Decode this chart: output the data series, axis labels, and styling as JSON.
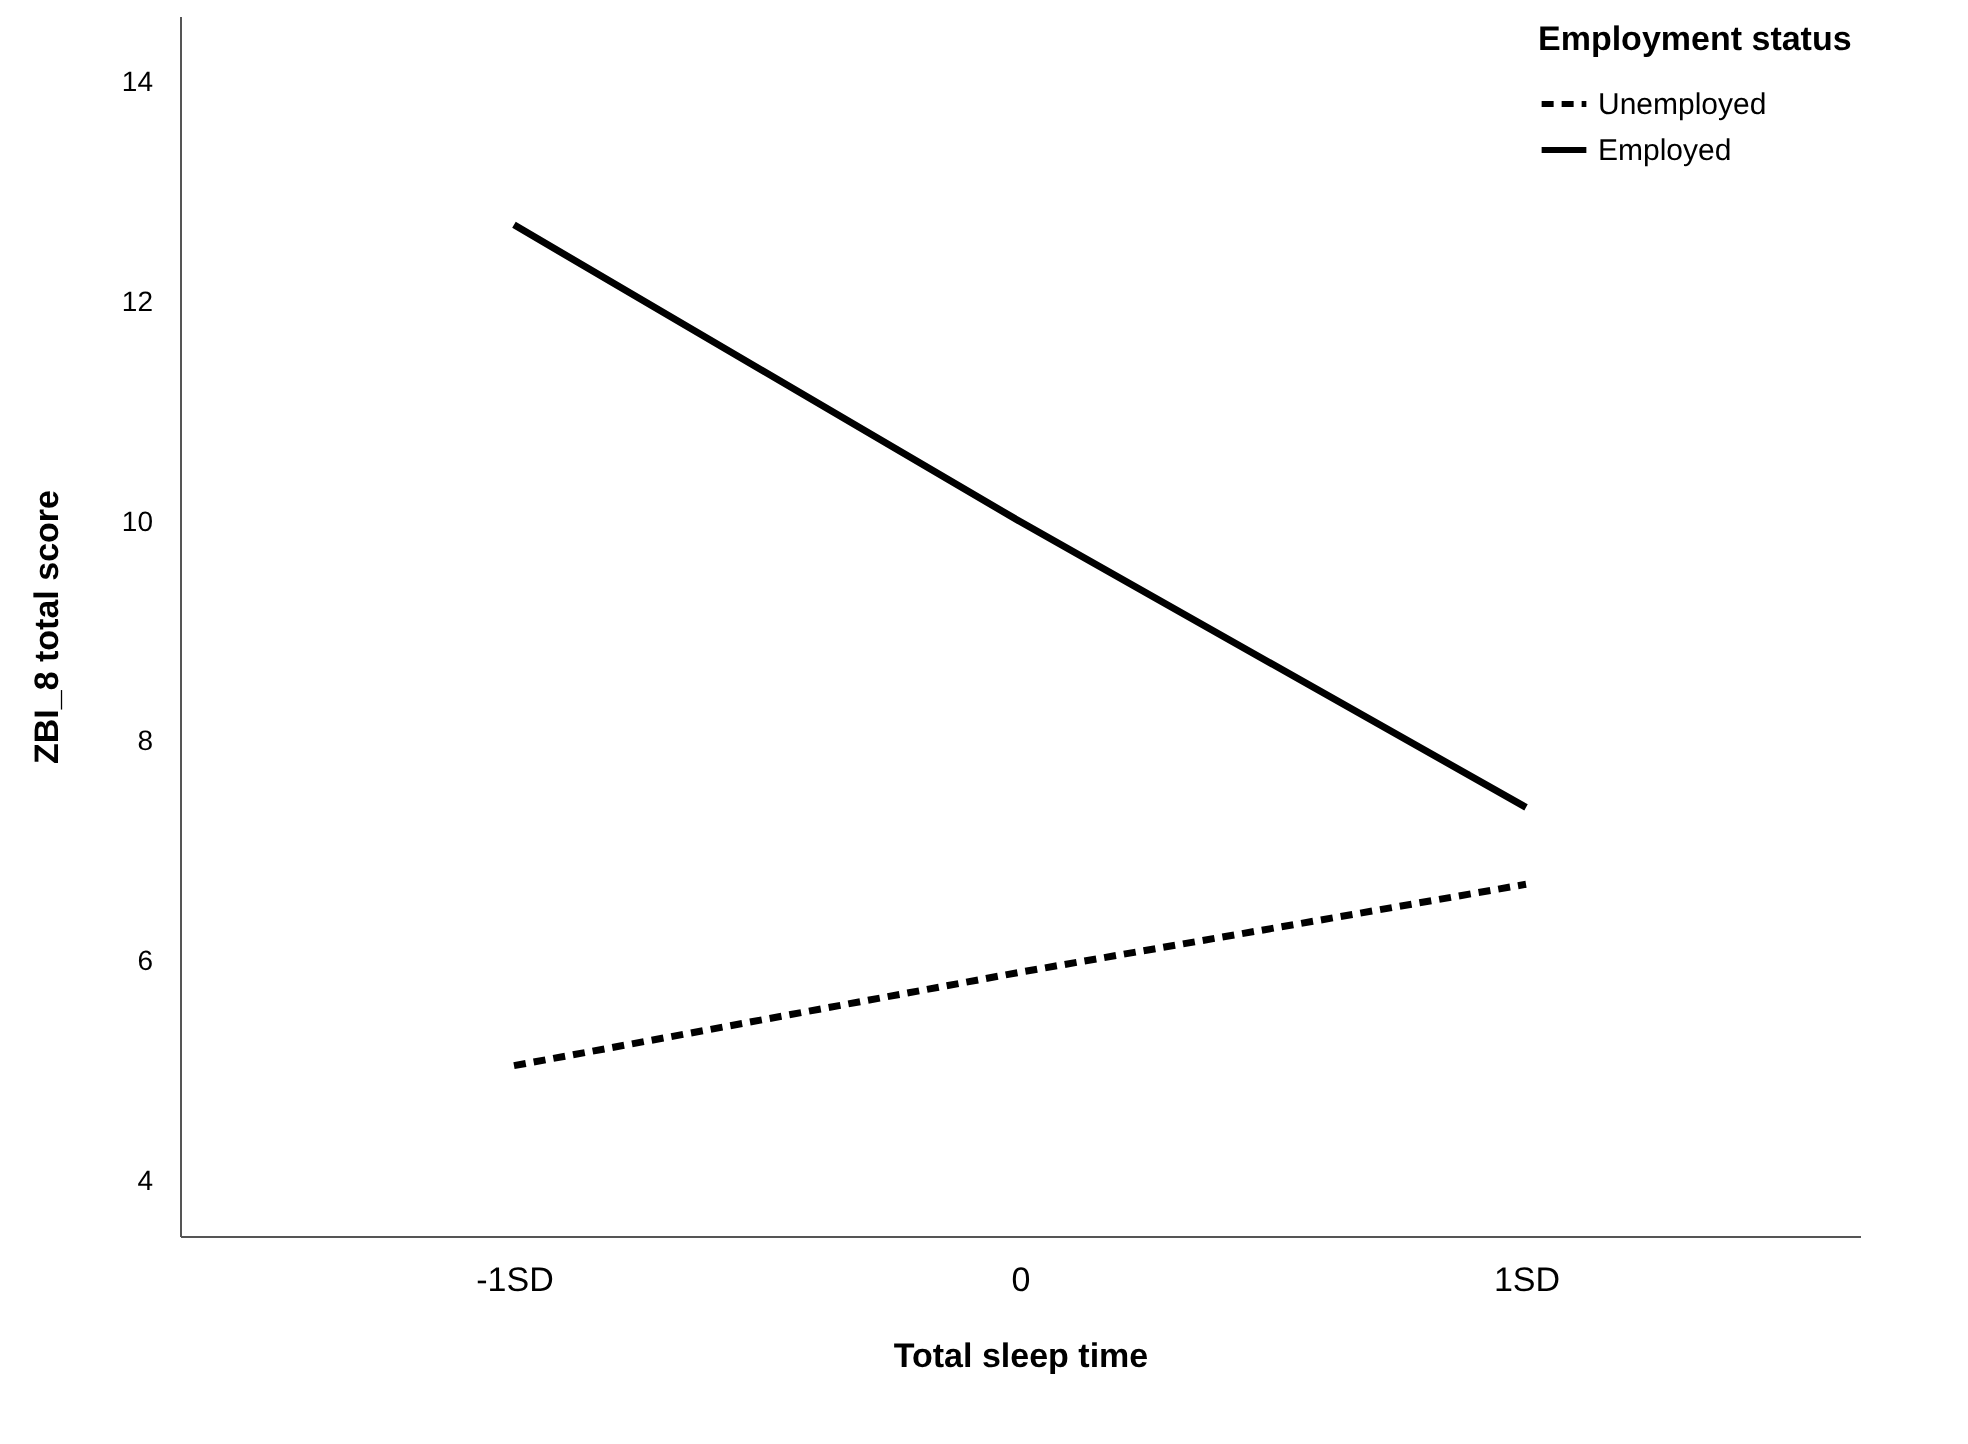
{
  "chart_data": {
    "type": "line",
    "xlabel": "Total sleep time",
    "ylabel": "ZBI_8 total score",
    "legend_title": "Employment status",
    "categories": [
      "-1SD",
      "0",
      "1SD"
    ],
    "series": [
      {
        "name": "Unemployed",
        "color": "#000000",
        "line_style": "dashed",
        "values": [
          5.05,
          5.9,
          6.7
        ]
      },
      {
        "name": "Employed",
        "color": "#000000",
        "line_style": "solid",
        "values": [
          12.7,
          10.0,
          7.4
        ]
      }
    ],
    "ylim": [
      3.5,
      14.6
    ],
    "yticks": [
      4,
      6,
      8,
      10,
      12,
      14
    ],
    "grid": false,
    "legend": "top right",
    "marker": "none"
  }
}
